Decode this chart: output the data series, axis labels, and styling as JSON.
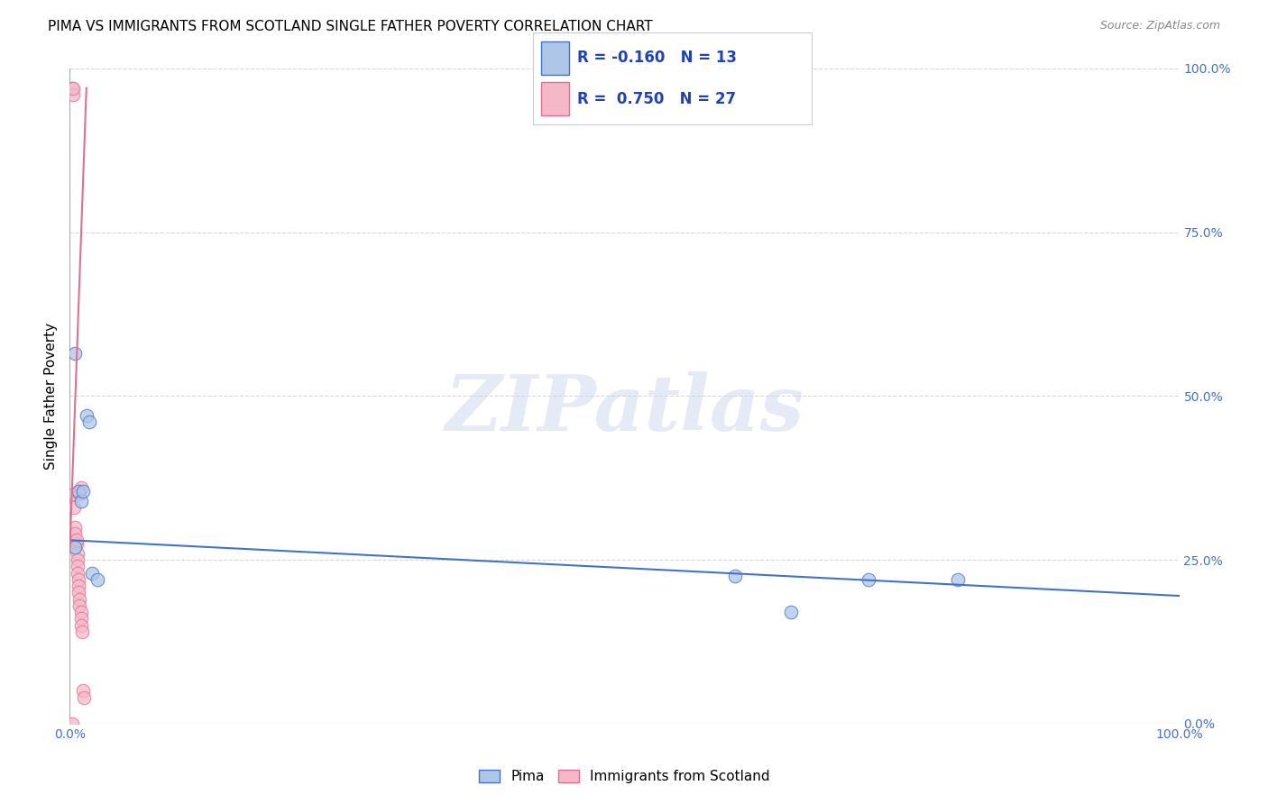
{
  "title": "PIMA VS IMMIGRANTS FROM SCOTLAND SINGLE FATHER POVERTY CORRELATION CHART",
  "source": "Source: ZipAtlas.com",
  "ylabel": "Single Father Poverty",
  "xlim": [
    0,
    1
  ],
  "ylim": [
    0,
    1
  ],
  "x_ticks": [
    0,
    0.25,
    0.5,
    0.75,
    1.0
  ],
  "y_ticks": [
    0,
    0.25,
    0.5,
    0.75,
    1.0
  ],
  "background_color": "#ffffff",
  "grid_color": "#d8d8d8",
  "pima_color": "#aec6e8",
  "scotland_color": "#f5b8c8",
  "pima_line_color": "#4472c4",
  "scotland_line_color": "#e07090",
  "watermark_text": "ZIPatlas",
  "pima_scatter_x": [
    0.005,
    0.008,
    0.01,
    0.012,
    0.015,
    0.018,
    0.02,
    0.025,
    0.6,
    0.65,
    0.72,
    0.8,
    0.005
  ],
  "pima_scatter_y": [
    0.565,
    0.355,
    0.34,
    0.355,
    0.47,
    0.46,
    0.23,
    0.22,
    0.225,
    0.17,
    0.22,
    0.22,
    0.27
  ],
  "scotland_scatter_x": [
    0.002,
    0.003,
    0.003,
    0.004,
    0.004,
    0.005,
    0.005,
    0.006,
    0.006,
    0.007,
    0.007,
    0.007,
    0.007,
    0.008,
    0.008,
    0.008,
    0.009,
    0.009,
    0.009,
    0.01,
    0.01,
    0.01,
    0.01,
    0.011,
    0.012,
    0.013,
    0.002
  ],
  "scotland_scatter_y": [
    0.97,
    0.96,
    0.97,
    0.35,
    0.33,
    0.3,
    0.29,
    0.275,
    0.28,
    0.26,
    0.25,
    0.24,
    0.23,
    0.22,
    0.21,
    0.2,
    0.19,
    0.18,
    0.35,
    0.17,
    0.16,
    0.15,
    0.36,
    0.14,
    0.05,
    0.04,
    0.0
  ],
  "pima_line_x": [
    0.0,
    1.0
  ],
  "pima_line_y": [
    0.28,
    0.195
  ],
  "scotland_line_x": [
    0.0,
    0.015
  ],
  "scotland_line_y": [
    0.262,
    0.97
  ],
  "legend_entries": [
    {
      "label": "R = -0.160   N = 13",
      "color": "#aec6e8",
      "edge_color": "#4472c4"
    },
    {
      "label": "R =  0.750   N = 27",
      "color": "#f5b8c8",
      "edge_color": "#e07090"
    }
  ],
  "bottom_legend": [
    {
      "label": "Pima",
      "color": "#aec6e8",
      "edge_color": "#4472c4"
    },
    {
      "label": "Immigrants from Scotland",
      "color": "#f5b8c8",
      "edge_color": "#e07090"
    }
  ]
}
